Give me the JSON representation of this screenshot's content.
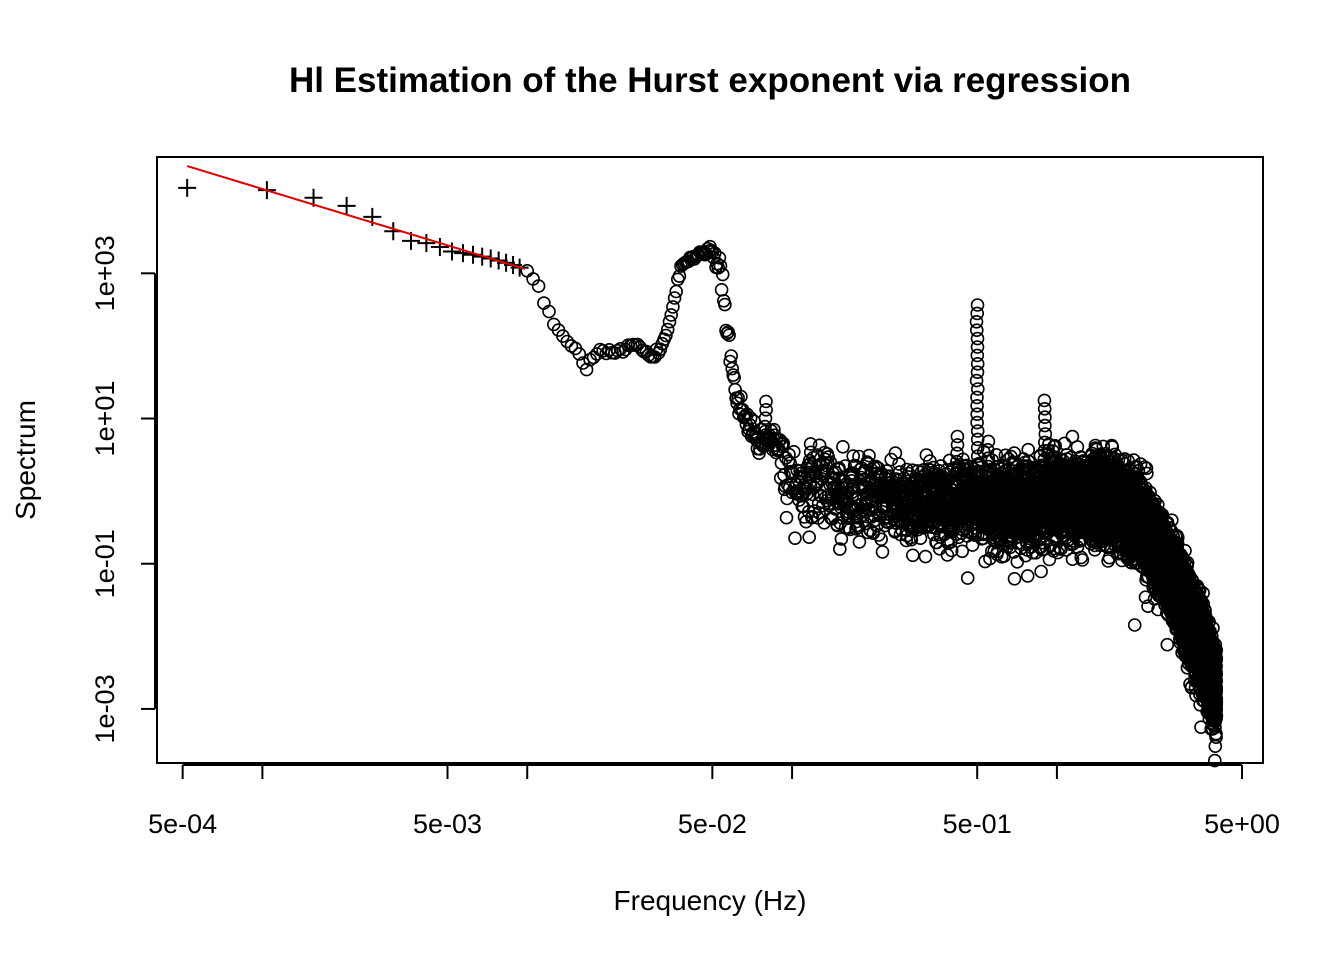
{
  "chart_data": {
    "type": "scatter",
    "title": "Hl Estimation of the Hurst exponent via regression",
    "xlabel": "Frequency (Hz)",
    "ylabel": "Spectrum",
    "x_scale": "log",
    "y_scale": "log",
    "xlim": [
      0.0004,
      6
    ],
    "ylim": [
      0.00018,
      40000
    ],
    "x_ticks": [
      0.0005,
      0.001,
      0.005,
      0.01,
      0.05,
      0.1,
      0.5,
      1,
      5
    ],
    "x_tick_labels": [
      {
        "value": 0.0005,
        "label": "5e-04"
      },
      {
        "value": 0.005,
        "label": "5e-03"
      },
      {
        "value": 0.05,
        "label": "5e-02"
      },
      {
        "value": 0.5,
        "label": "5e-01"
      },
      {
        "value": 5,
        "label": "5e+00"
      }
    ],
    "y_tick_labels": [
      {
        "value": 0.001,
        "label": "1e-03"
      },
      {
        "value": 0.1,
        "label": "1e-01"
      },
      {
        "value": 10,
        "label": "1e+01"
      },
      {
        "value": 1000,
        "label": "1e+03"
      }
    ],
    "colors": {
      "points": "#000000",
      "fit_line": "#e00000"
    },
    "series": [
      {
        "marker": "plus",
        "x": [
          0.00052,
          0.00104,
          0.00156,
          0.00208,
          0.0026,
          0.00312,
          0.00364,
          0.00416,
          0.00468,
          0.0052,
          0.00572,
          0.00624,
          0.00676,
          0.00728,
          0.0078,
          0.00832,
          0.00884,
          0.00936
        ],
        "y": [
          15000,
          14000,
          11000,
          8500,
          6000,
          3800,
          2800,
          2600,
          2300,
          2000,
          1900,
          1800,
          1700,
          1600,
          1500,
          1400,
          1300,
          1200
        ]
      },
      {
        "marker": "circle",
        "anchors_x": [
          0.01,
          0.0103,
          0.011,
          0.0115,
          0.012,
          0.0128,
          0.0135,
          0.014,
          0.015,
          0.016,
          0.0167,
          0.0175,
          0.019,
          0.021,
          0.023,
          0.025,
          0.027,
          0.028,
          0.03,
          0.032,
          0.034,
          0.036,
          0.038,
          0.04,
          0.043,
          0.047,
          0.049,
          0.05,
          0.052,
          0.054,
          0.055,
          0.057,
          0.06,
          0.063,
          0.066,
          0.07,
          0.075,
          0.08,
          0.085,
          0.09,
          0.1,
          0.11,
          0.13,
          0.16,
          0.2,
          0.25,
          0.3,
          0.4,
          0.45,
          0.5,
          0.55,
          0.6,
          0.8,
          1,
          1.5,
          2,
          2.5,
          3,
          3.5,
          3.8,
          4
        ],
        "anchors_y": [
          1100,
          900,
          700,
          400,
          280,
          190,
          140,
          120,
          100,
          70,
          50,
          65,
          90,
          80,
          85,
          110,
          95,
          80,
          70,
          100,
          170,
          450,
          1200,
          1500,
          1700,
          1900,
          2200,
          2000,
          1600,
          1000,
          500,
          150,
          40,
          14,
          10,
          7,
          5,
          4.5,
          5,
          3,
          1.6,
          1.3,
          1.0,
          0.85,
          0.8,
          0.75,
          0.7,
          0.65,
          0.7,
          0.8,
          0.75,
          0.65,
          0.7,
          0.75,
          0.8,
          0.5,
          0.12,
          0.03,
          0.008,
          0.003,
          0.0018
        ],
        "peaks": [
          {
            "x": 0.0795,
            "y": 18
          },
          {
            "x": 0.117,
            "y": 5
          },
          {
            "x": 0.15,
            "y": 2.3
          },
          {
            "x": 0.42,
            "y": 7
          },
          {
            "x": 0.5,
            "y": 400
          },
          {
            "x": 0.55,
            "y": 5
          },
          {
            "x": 0.75,
            "y": 2.5
          },
          {
            "x": 0.9,
            "y": 20
          },
          {
            "x": 1.1,
            "y": 2.2
          },
          {
            "x": 1.4,
            "y": 5
          }
        ],
        "spread_decades": 0.38
      }
    ],
    "fit_line": {
      "x": [
        0.00052,
        0.0098
      ],
      "y": [
        30000,
        1150
      ]
    }
  }
}
